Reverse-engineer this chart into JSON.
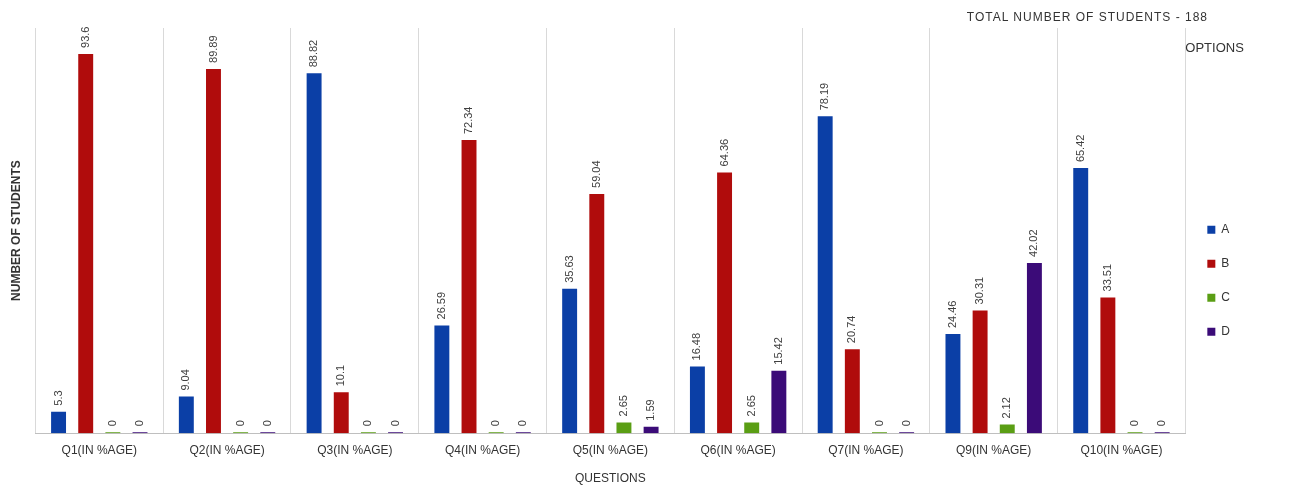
{
  "chart_data": {
    "type": "bar",
    "xlabel": "QUESTIONS",
    "ylabel": "NUMBER OF STUDENTS",
    "legend_title": "OPTIONS",
    "legend": "right",
    "grid": "x",
    "data_labels": true,
    "annotations": [
      "TOTAL NUMBER OF STUDENTS - 188"
    ],
    "categories": [
      "Q1(IN %AGE)",
      "Q2(IN %AGE)",
      "Q3(IN %AGE)",
      "Q4(IN %AGE)",
      "Q5(IN %AGE)",
      "Q6(IN %AGE)",
      "Q7(IN %AGE)",
      "Q9(IN %AGE)",
      "Q10(IN %AGE)"
    ],
    "series": [
      {
        "name": "A",
        "color": "#0b3fa6",
        "values": [
          5.3,
          9.04,
          88.82,
          26.59,
          35.63,
          16.48,
          78.19,
          24.46,
          65.42
        ]
      },
      {
        "name": "B",
        "color": "#b00c0c",
        "values": [
          93.6,
          89.89,
          10.1,
          72.34,
          59.04,
          64.36,
          20.74,
          30.31,
          33.51
        ]
      },
      {
        "name": "C",
        "color": "#5a9e14",
        "values": [
          0,
          0,
          0,
          0,
          2.65,
          2.65,
          0,
          2.12,
          0
        ]
      },
      {
        "name": "D",
        "color": "#3b0b78",
        "values": [
          0,
          0,
          0,
          0,
          1.59,
          15.42,
          0,
          42.02,
          0
        ]
      }
    ]
  }
}
